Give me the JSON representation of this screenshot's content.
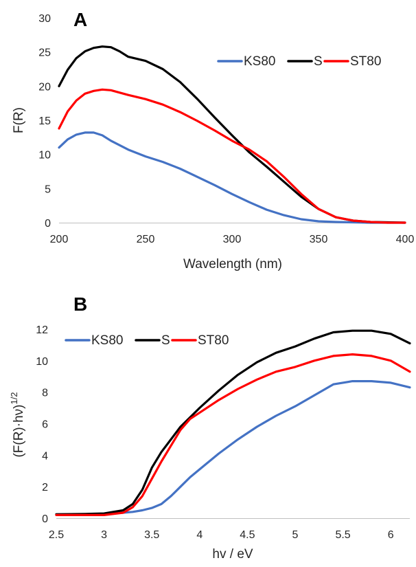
{
  "figure": {
    "panels": [
      {
        "label": "A",
        "ylabel": "F(R)",
        "xlabel": "Wavelength (nm)"
      },
      {
        "label": "B",
        "ylabel": "(F(R)·hν)",
        "ylabel_sup": "1/2",
        "xlabel": "hv / eV"
      }
    ]
  },
  "chart_data": [
    {
      "type": "line",
      "panel": "A",
      "title": "",
      "xlabel": "Wavelength (nm)",
      "ylabel": "F(R)",
      "xlim": [
        200,
        400
      ],
      "ylim": [
        0,
        30
      ],
      "xticks": [
        200,
        250,
        300,
        350,
        400
      ],
      "yticks": [
        0,
        5,
        10,
        15,
        20,
        25,
        30
      ],
      "grid": false,
      "legend": "top-right, horizontal",
      "series": [
        {
          "name": "KS80",
          "color": "#4472C4",
          "x": [
            200,
            205,
            210,
            215,
            220,
            225,
            230,
            240,
            250,
            260,
            270,
            280,
            290,
            300,
            310,
            320,
            330,
            340,
            350,
            360,
            370,
            380,
            390,
            400
          ],
          "y": [
            11.0,
            12.2,
            12.9,
            13.2,
            13.2,
            12.8,
            12.0,
            10.7,
            9.7,
            8.9,
            7.9,
            6.7,
            5.5,
            4.2,
            3.0,
            1.9,
            1.1,
            0.5,
            0.2,
            0.1,
            0.05,
            0.0,
            0.0,
            0.0
          ]
        },
        {
          "name": "S",
          "color": "#000000",
          "x": [
            200,
            205,
            210,
            215,
            220,
            225,
            230,
            235,
            240,
            250,
            260,
            270,
            280,
            290,
            300,
            310,
            320,
            330,
            340,
            350,
            360,
            370,
            380,
            390,
            400
          ],
          "y": [
            20.0,
            22.4,
            24.1,
            25.1,
            25.6,
            25.8,
            25.7,
            25.1,
            24.3,
            23.7,
            22.5,
            20.6,
            18.1,
            15.4,
            12.8,
            10.3,
            8.2,
            6.0,
            3.8,
            2.0,
            0.8,
            0.3,
            0.1,
            0.05,
            0.0
          ]
        },
        {
          "name": "ST80",
          "color": "#FF0000",
          "x": [
            200,
            205,
            210,
            215,
            220,
            225,
            230,
            240,
            250,
            260,
            270,
            280,
            290,
            300,
            310,
            320,
            330,
            340,
            350,
            360,
            370,
            380,
            390,
            400
          ],
          "y": [
            13.8,
            16.3,
            17.9,
            18.9,
            19.3,
            19.5,
            19.4,
            18.7,
            18.1,
            17.3,
            16.2,
            14.9,
            13.5,
            12.0,
            10.7,
            9.0,
            6.7,
            4.2,
            2.0,
            0.8,
            0.3,
            0.1,
            0.0,
            0.0
          ]
        }
      ]
    },
    {
      "type": "line",
      "panel": "B",
      "title": "",
      "xlabel": "hv / eV",
      "ylabel": "(F(R)·hν)^1/2",
      "xlim": [
        2.5,
        6.2
      ],
      "ylim": [
        0,
        13
      ],
      "xticks": [
        2.5,
        3,
        3.5,
        4,
        4.5,
        5,
        5.5,
        6
      ],
      "xtick_labels": [
        "2.5",
        "3",
        "3.5",
        "4",
        "4.5",
        "5",
        "5.5",
        "6"
      ],
      "yticks": [
        0,
        2,
        4,
        6,
        8,
        10,
        12
      ],
      "grid": false,
      "legend": "top-left, horizontal",
      "series": [
        {
          "name": "KS80",
          "color": "#4472C4",
          "x": [
            2.5,
            2.8,
            3.0,
            3.2,
            3.3,
            3.4,
            3.5,
            3.6,
            3.7,
            3.8,
            3.9,
            4.0,
            4.2,
            4.4,
            4.6,
            4.8,
            5.0,
            5.2,
            5.4,
            5.6,
            5.8,
            6.0,
            6.2
          ],
          "y": [
            0.25,
            0.25,
            0.27,
            0.35,
            0.4,
            0.5,
            0.65,
            0.9,
            1.4,
            2.0,
            2.6,
            3.1,
            4.1,
            5.0,
            5.8,
            6.5,
            7.1,
            7.8,
            8.5,
            8.7,
            8.7,
            8.6,
            8.3
          ]
        },
        {
          "name": "S",
          "color": "#000000",
          "x": [
            2.5,
            2.8,
            3.0,
            3.2,
            3.3,
            3.4,
            3.5,
            3.6,
            3.7,
            3.8,
            3.9,
            4.0,
            4.2,
            4.4,
            4.6,
            4.8,
            5.0,
            5.2,
            5.4,
            5.6,
            5.8,
            6.0,
            6.2
          ],
          "y": [
            0.25,
            0.27,
            0.3,
            0.5,
            0.9,
            1.8,
            3.2,
            4.2,
            5.0,
            5.8,
            6.4,
            7.0,
            8.1,
            9.1,
            9.9,
            10.5,
            10.9,
            11.4,
            11.8,
            11.9,
            11.9,
            11.7,
            11.1
          ]
        },
        {
          "name": "ST80",
          "color": "#FF0000",
          "x": [
            2.5,
            2.8,
            3.0,
            3.2,
            3.3,
            3.4,
            3.5,
            3.6,
            3.7,
            3.8,
            3.9,
            4.0,
            4.2,
            4.4,
            4.6,
            4.8,
            5.0,
            5.2,
            5.4,
            5.6,
            5.8,
            6.0,
            6.2
          ],
          "y": [
            0.2,
            0.2,
            0.2,
            0.35,
            0.7,
            1.4,
            2.5,
            3.6,
            4.6,
            5.6,
            6.3,
            6.7,
            7.5,
            8.2,
            8.8,
            9.3,
            9.6,
            10.0,
            10.3,
            10.4,
            10.3,
            10.0,
            9.3
          ]
        }
      ]
    }
  ]
}
